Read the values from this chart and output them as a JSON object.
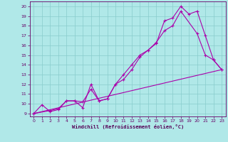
{
  "xlabel": "Windchill (Refroidissement éolien,°C)",
  "bg_color": "#b0e8e8",
  "line_color": "#aa00aa",
  "grid_color": "#88cccc",
  "xlim": [
    -0.5,
    23.5
  ],
  "ylim": [
    8.7,
    20.5
  ],
  "xticks": [
    0,
    1,
    2,
    3,
    4,
    5,
    6,
    7,
    8,
    9,
    10,
    11,
    12,
    13,
    14,
    15,
    16,
    17,
    18,
    19,
    20,
    21,
    22,
    23
  ],
  "yticks": [
    9,
    10,
    11,
    12,
    13,
    14,
    15,
    16,
    17,
    18,
    19,
    20
  ],
  "line1_x": [
    0,
    1,
    2,
    3,
    4,
    5,
    6,
    7,
    8,
    9,
    10,
    11,
    12,
    13,
    14,
    15,
    16,
    17,
    18,
    19,
    20,
    21,
    22,
    23
  ],
  "line1_y": [
    9.0,
    9.9,
    9.2,
    9.4,
    10.3,
    10.3,
    9.6,
    12.0,
    10.3,
    10.5,
    12.0,
    13.0,
    14.0,
    15.0,
    15.5,
    16.2,
    18.5,
    18.8,
    20.0,
    19.2,
    19.5,
    17.0,
    14.5,
    13.5
  ],
  "line2_x": [
    0,
    2,
    3,
    4,
    5,
    6,
    7,
    8,
    9,
    10,
    11,
    12,
    13,
    14,
    15,
    16,
    17,
    18,
    20,
    21,
    22,
    23
  ],
  "line2_y": [
    9.0,
    9.3,
    9.5,
    10.3,
    10.3,
    10.2,
    11.5,
    10.3,
    10.5,
    12.0,
    12.5,
    13.5,
    14.8,
    15.5,
    16.3,
    17.5,
    18.0,
    19.5,
    17.2,
    15.0,
    14.5,
    13.5
  ],
  "line3_x": [
    0,
    23
  ],
  "line3_y": [
    9.0,
    13.5
  ]
}
